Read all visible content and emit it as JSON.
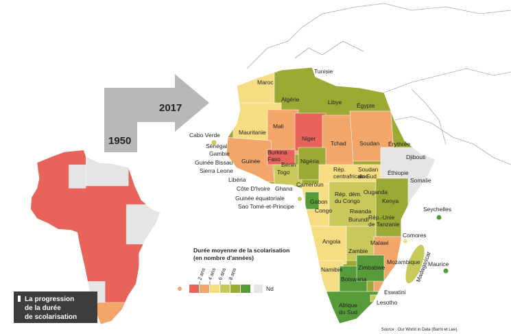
{
  "title": [
    "La progression",
    "de la durée",
    "de scolarisation"
  ],
  "years": {
    "before": "1950",
    "after": "2017"
  },
  "legend": {
    "title": [
      "Durée moyenne de la scolarisation",
      "(en nombre d'années)"
    ],
    "ticks": [
      "2 ans",
      "4 ans",
      "6 ans",
      "8 ans"
    ],
    "nd": "Nd",
    "colors": [
      "#e8635a",
      "#f2a66a",
      "#f6dd82",
      "#c9c85a",
      "#9da935",
      "#579a3a"
    ],
    "nd_color": "#e5e5e5"
  },
  "countries": [
    [
      "Tunisie"
    ],
    [
      "Maroc"
    ],
    [
      "Algérie"
    ],
    [
      "Libye"
    ],
    [
      "Égypte"
    ],
    [
      "Mauritanie"
    ],
    [
      "Mali"
    ],
    [
      "Niger"
    ],
    [
      "Tchad"
    ],
    [
      "Soudan"
    ],
    [
      "Érythrée"
    ],
    [
      "Cabo Verde"
    ],
    [
      "Sénégal"
    ],
    [
      "Gambie"
    ],
    [
      "Guinée Bissau"
    ],
    [
      "Sierra Leone"
    ],
    [
      "Guinée"
    ],
    [
      "Burkina",
      "Faso"
    ],
    [
      "Bénin"
    ],
    [
      "Togo"
    ],
    [
      "Nigéria"
    ],
    [
      "Djibouti"
    ],
    [
      "Libéria"
    ],
    [
      "Rép.",
      "centrafricaine"
    ],
    [
      "Soudan",
      "du Sud"
    ],
    [
      "Éthiopie"
    ],
    [
      "Somalie"
    ],
    [
      "Côte D'Ivoire"
    ],
    [
      "Ghana"
    ],
    [
      "Cameroun"
    ],
    [
      "Guinée équatoriale"
    ],
    [
      "Sao Tomé-et-Principe"
    ],
    [
      "Gabon"
    ],
    [
      "Congo"
    ],
    [
      "Rép. dém.",
      "du Congo"
    ],
    [
      "Ouganda"
    ],
    [
      "Kenya"
    ],
    [
      "Rwanda"
    ],
    [
      "Burundi"
    ],
    [
      "Rép.-Unie",
      "de Tanzanie"
    ],
    [
      "Seychelles"
    ],
    [
      "Comores"
    ],
    [
      "Angola"
    ],
    [
      "Malawi"
    ],
    [
      "Zambie"
    ],
    [
      "Mozambique"
    ],
    [
      "Madagascar"
    ],
    [
      "Maurice"
    ],
    [
      "Zimbabwe"
    ],
    [
      "Namibie"
    ],
    [
      "Botswana"
    ],
    [
      "Eswatini"
    ],
    [
      "Afrique",
      "du Sud"
    ],
    [
      "Lesotho"
    ]
  ],
  "source": "Source : Our World in Data (Barro et Lee)."
}
